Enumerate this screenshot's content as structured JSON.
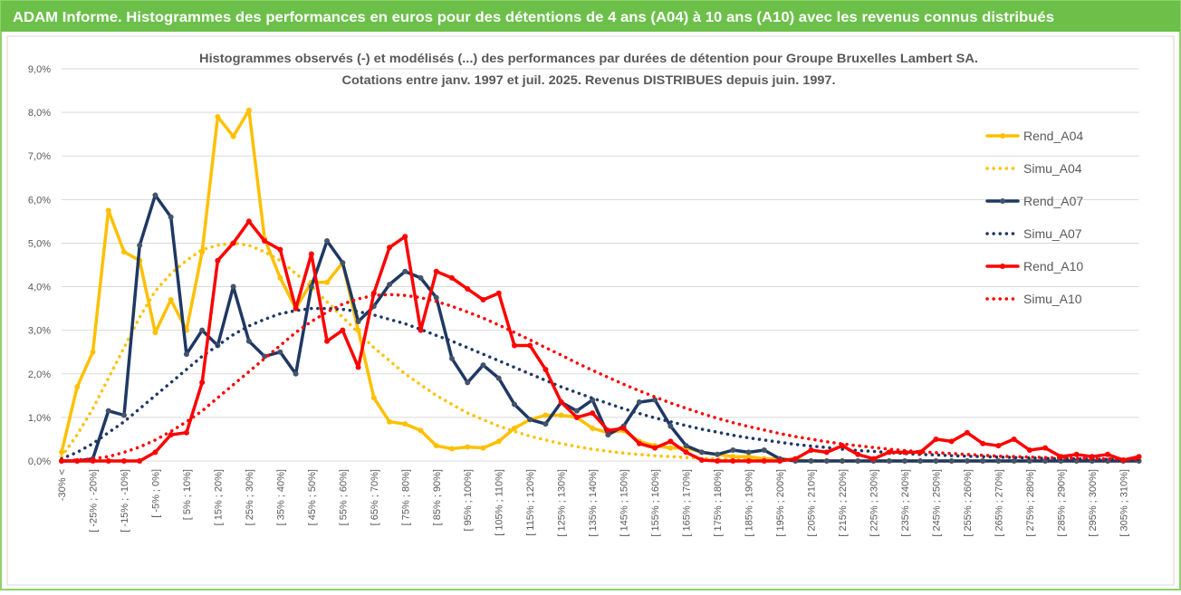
{
  "header": {
    "title": "ADAM Informe. Histogrammes des performances en euros pour des détentions de 4 ans (A04) à 10 ans (A10) avec les revenus connus distribués"
  },
  "chart_data": {
    "type": "line",
    "title": "Histogrammes observés (-) et modélisés (...) des performances par durées de détention pour Groupe Bruxelles Lambert SA.",
    "subtitle": "Cotations entre janv. 1997 et juil. 2025. Revenus DISTRIBUES depuis juin. 1997.",
    "categories": [
      "-30% <",
      null,
      "[ -25% ; -20%]",
      null,
      "[ -15% ; -10%]",
      null,
      "[ -5% ; 0%]",
      null,
      "[ 5% ; 10%]",
      null,
      "[ 15% ; 20%]",
      null,
      "[ 25% ; 30%]",
      null,
      "[ 35% ; 40%]",
      null,
      "[ 45% ; 50%]",
      null,
      "[ 55% ; 60%]",
      null,
      "[ 65% ; 70%]",
      null,
      "[ 75% ; 80%]",
      null,
      "[ 85% ; 90%]",
      null,
      "[ 95% ; 100%]",
      null,
      "[ 105% ; 110%]",
      null,
      "[ 115% ; 120%]",
      null,
      "[ 125% ; 130%]",
      null,
      "[ 135% ; 140%]",
      null,
      "[ 145% ; 150%]",
      null,
      "[ 155% ; 160%]",
      null,
      "[ 165% ; 170%]",
      null,
      "[ 175% ; 180%]",
      null,
      "[ 185% ; 190%]",
      null,
      "[ 195% ; 200%]",
      null,
      "[ 205% ; 210%]",
      null,
      "[ 215% ; 220%]",
      null,
      "[ 225% ; 230%]",
      null,
      "[ 235% ; 240%]",
      null,
      "[ 245% ; 250%]",
      null,
      "[ 255% ; 260%]",
      null,
      "[ 265% ; 270%]",
      null,
      "[ 275% ; 280%]",
      null,
      "[ 285% ; 290%]",
      null,
      "[ 295% ; 300%]",
      null,
      "[ 305% ; 310%]",
      null
    ],
    "series": [
      {
        "name": "Rend_A04",
        "color": "#ffc000",
        "line_style": "solid",
        "markers": true,
        "values": [
          0.2,
          1.7,
          2.5,
          5.75,
          4.8,
          4.6,
          2.95,
          3.7,
          3.0,
          4.8,
          7.9,
          7.45,
          8.05,
          5.1,
          4.2,
          3.5,
          4.1,
          4.1,
          4.55,
          3.0,
          1.45,
          0.9,
          0.85,
          0.7,
          0.35,
          0.28,
          0.32,
          0.3,
          0.45,
          0.75,
          0.95,
          1.05,
          1.05,
          1.0,
          0.75,
          0.65,
          0.7,
          0.45,
          0.35,
          0.3,
          0.3,
          0.2,
          0.15,
          0.1,
          0.1,
          0.05,
          0.05,
          0.02,
          0,
          0,
          0,
          0,
          0,
          0,
          0,
          0,
          0,
          0,
          0,
          0,
          0,
          0,
          0,
          0,
          0,
          0,
          0,
          0,
          0,
          0
        ]
      },
      {
        "name": "Simu_A04",
        "color": "#ffc000",
        "line_style": "dotted",
        "markers": false,
        "values": [
          0.1,
          0.6,
          1.2,
          1.9,
          2.6,
          3.3,
          3.9,
          4.3,
          4.6,
          4.85,
          4.95,
          5.0,
          4.95,
          4.8,
          4.6,
          4.3,
          4.0,
          3.65,
          3.3,
          2.95,
          2.6,
          2.3,
          2.0,
          1.75,
          1.5,
          1.3,
          1.1,
          0.95,
          0.8,
          0.68,
          0.57,
          0.48,
          0.4,
          0.33,
          0.27,
          0.22,
          0.18,
          0.15,
          0.12,
          0.1,
          0.08,
          0.06,
          0.05,
          0.04,
          0.03,
          0.02,
          0.02,
          0.01,
          0.01,
          0.01,
          0,
          0,
          0,
          0,
          0,
          0,
          0,
          0,
          0,
          0,
          0,
          0,
          0,
          0,
          0,
          0,
          0,
          0,
          0,
          0
        ]
      },
      {
        "name": "Rend_A07",
        "color": "#1f3864",
        "line_style": "solid",
        "markers": true,
        "values": [
          0,
          0,
          0.05,
          1.15,
          1.05,
          4.95,
          6.1,
          5.6,
          2.45,
          3.0,
          2.65,
          4.0,
          2.75,
          2.4,
          2.5,
          2.0,
          4.0,
          5.05,
          4.55,
          3.2,
          3.55,
          4.05,
          4.35,
          4.2,
          3.75,
          2.35,
          1.8,
          2.2,
          1.9,
          1.3,
          0.95,
          0.85,
          1.35,
          1.15,
          1.4,
          0.6,
          0.8,
          1.35,
          1.4,
          0.8,
          0.35,
          0.2,
          0.15,
          0.25,
          0.2,
          0.25,
          0.05,
          0,
          0,
          0,
          0,
          0,
          0,
          0,
          0,
          0,
          0,
          0,
          0,
          0,
          0,
          0,
          0,
          0,
          0,
          0,
          0,
          0,
          0,
          0
        ]
      },
      {
        "name": "Simu_A07",
        "color": "#1f3864",
        "line_style": "dotted",
        "markers": false,
        "values": [
          0.05,
          0.2,
          0.4,
          0.65,
          0.9,
          1.2,
          1.5,
          1.8,
          2.1,
          2.4,
          2.65,
          2.9,
          3.1,
          3.25,
          3.38,
          3.45,
          3.5,
          3.5,
          3.48,
          3.43,
          3.35,
          3.25,
          3.15,
          3.02,
          2.88,
          2.75,
          2.6,
          2.45,
          2.3,
          2.15,
          2.0,
          1.85,
          1.7,
          1.57,
          1.44,
          1.32,
          1.2,
          1.09,
          0.99,
          0.9,
          0.81,
          0.73,
          0.66,
          0.59,
          0.53,
          0.48,
          0.43,
          0.38,
          0.34,
          0.31,
          0.27,
          0.24,
          0.22,
          0.19,
          0.17,
          0.15,
          0.14,
          0.12,
          0.11,
          0.1,
          0.09,
          0.08,
          0.07,
          0.06,
          0.05,
          0.05,
          0.04,
          0.04,
          0.03,
          0.03
        ]
      },
      {
        "name": "Rend_A10",
        "color": "#ff0000",
        "line_style": "solid",
        "markers": true,
        "values": [
          0,
          0,
          0,
          0,
          0,
          0,
          0.2,
          0.6,
          0.65,
          1.8,
          4.6,
          5.0,
          5.5,
          5.05,
          4.85,
          3.5,
          4.75,
          2.75,
          3.0,
          2.15,
          3.85,
          4.9,
          5.15,
          3.0,
          4.35,
          4.2,
          3.95,
          3.7,
          3.85,
          2.65,
          2.65,
          2.1,
          1.35,
          1.0,
          1.1,
          0.7,
          0.75,
          0.4,
          0.3,
          0.45,
          0.2,
          0.02,
          0,
          0,
          0,
          0,
          0,
          0.05,
          0.25,
          0.2,
          0.35,
          0.15,
          0.05,
          0.2,
          0.2,
          0.2,
          0.5,
          0.45,
          0.65,
          0.4,
          0.35,
          0.5,
          0.25,
          0.3,
          0.1,
          0.15,
          0.1,
          0.15,
          0.02,
          0.1
        ]
      },
      {
        "name": "Simu_A10",
        "color": "#ff0000",
        "line_style": "dotted",
        "markers": false,
        "values": [
          0,
          0.02,
          0.05,
          0.1,
          0.2,
          0.32,
          0.48,
          0.68,
          0.9,
          1.15,
          1.45,
          1.75,
          2.05,
          2.35,
          2.65,
          2.95,
          3.2,
          3.42,
          3.6,
          3.72,
          3.8,
          3.82,
          3.8,
          3.75,
          3.66,
          3.55,
          3.42,
          3.28,
          3.12,
          2.95,
          2.78,
          2.6,
          2.43,
          2.25,
          2.08,
          1.92,
          1.76,
          1.61,
          1.47,
          1.33,
          1.21,
          1.09,
          0.98,
          0.88,
          0.79,
          0.71,
          0.63,
          0.56,
          0.5,
          0.44,
          0.39,
          0.35,
          0.31,
          0.27,
          0.24,
          0.21,
          0.19,
          0.17,
          0.15,
          0.13,
          0.11,
          0.1,
          0.09,
          0.08,
          0.07,
          0.06,
          0.05,
          0.05,
          0.04,
          0.04
        ]
      }
    ],
    "ylim": [
      0,
      9
    ],
    "yticks": [
      {
        "value": 0,
        "label": "0,0%"
      },
      {
        "value": 1,
        "label": "1,0%"
      },
      {
        "value": 2,
        "label": "2,0%"
      },
      {
        "value": 3,
        "label": "3,0%"
      },
      {
        "value": 4,
        "label": "4,0%"
      },
      {
        "value": 5,
        "label": "5,0%"
      },
      {
        "value": 6,
        "label": "6,0%"
      },
      {
        "value": 7,
        "label": "7,0%"
      },
      {
        "value": 8,
        "label": "8,0%"
      },
      {
        "value": 9,
        "label": "9,0%"
      }
    ],
    "grid": true,
    "legend": "right"
  }
}
